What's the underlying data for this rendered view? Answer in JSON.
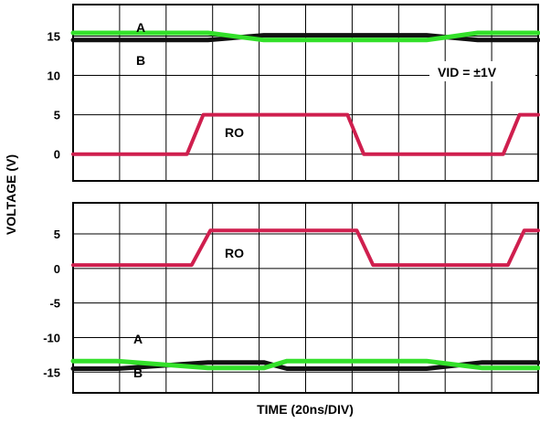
{
  "chart_data": {
    "type": "line",
    "title": "",
    "xlabel": "TIME (20ns/DIV)",
    "ylabel": "VOLTAGE (V)",
    "x_divisions": 10,
    "grid": true,
    "colors": {
      "A": "#111111",
      "B": "#33e02a",
      "RO": "#cf1f4e"
    },
    "panels": [
      {
        "name": "top",
        "ylim": [
          -3.4,
          19
        ],
        "yticks": [
          0,
          5,
          10,
          15
        ],
        "labels": {
          "A": "A",
          "B": "B",
          "RO": "RO",
          "note": "VID = ±1V"
        },
        "series": [
          {
            "name": "A",
            "points": [
              [
                0,
                14.5
              ],
              [
                2.9,
                14.5
              ],
              [
                4.1,
                15.1
              ],
              [
                7.6,
                15.1
              ],
              [
                8.7,
                14.5
              ],
              [
                10,
                14.5
              ]
            ]
          },
          {
            "name": "B",
            "points": [
              [
                0,
                15.4
              ],
              [
                2.9,
                15.4
              ],
              [
                4.1,
                14.5
              ],
              [
                7.6,
                14.5
              ],
              [
                8.7,
                15.4
              ],
              [
                10,
                15.4
              ]
            ]
          },
          {
            "name": "RO",
            "points": [
              [
                0,
                0
              ],
              [
                2.45,
                0
              ],
              [
                2.8,
                5
              ],
              [
                5.9,
                5
              ],
              [
                6.25,
                0
              ],
              [
                9.25,
                0
              ],
              [
                9.6,
                5
              ],
              [
                10,
                5
              ]
            ]
          }
        ]
      },
      {
        "name": "bottom",
        "ylim": [
          -18,
          9.5
        ],
        "yticks": [
          -15,
          -10,
          -5,
          0,
          5
        ],
        "labels": {
          "A": "A",
          "B": "B",
          "RO": "RO"
        },
        "series": [
          {
            "name": "A",
            "points": [
              [
                0,
                -14.5
              ],
              [
                0.95,
                -14.5
              ],
              [
                2.9,
                -13.6
              ],
              [
                4.1,
                -13.6
              ],
              [
                4.6,
                -14.5
              ],
              [
                7.6,
                -14.5
              ],
              [
                8.8,
                -13.6
              ],
              [
                10,
                -13.6
              ]
            ]
          },
          {
            "name": "B",
            "points": [
              [
                0,
                -13.4
              ],
              [
                0.95,
                -13.4
              ],
              [
                2.9,
                -14.4
              ],
              [
                4.1,
                -14.4
              ],
              [
                4.6,
                -13.4
              ],
              [
                7.6,
                -13.4
              ],
              [
                8.8,
                -14.4
              ],
              [
                10,
                -14.4
              ]
            ]
          },
          {
            "name": "RO",
            "points": [
              [
                0,
                0.5
              ],
              [
                2.55,
                0.5
              ],
              [
                2.95,
                5.5
              ],
              [
                6.1,
                5.5
              ],
              [
                6.45,
                0.5
              ],
              [
                9.35,
                0.5
              ],
              [
                9.7,
                5.5
              ],
              [
                10,
                5.5
              ]
            ]
          }
        ]
      }
    ]
  }
}
